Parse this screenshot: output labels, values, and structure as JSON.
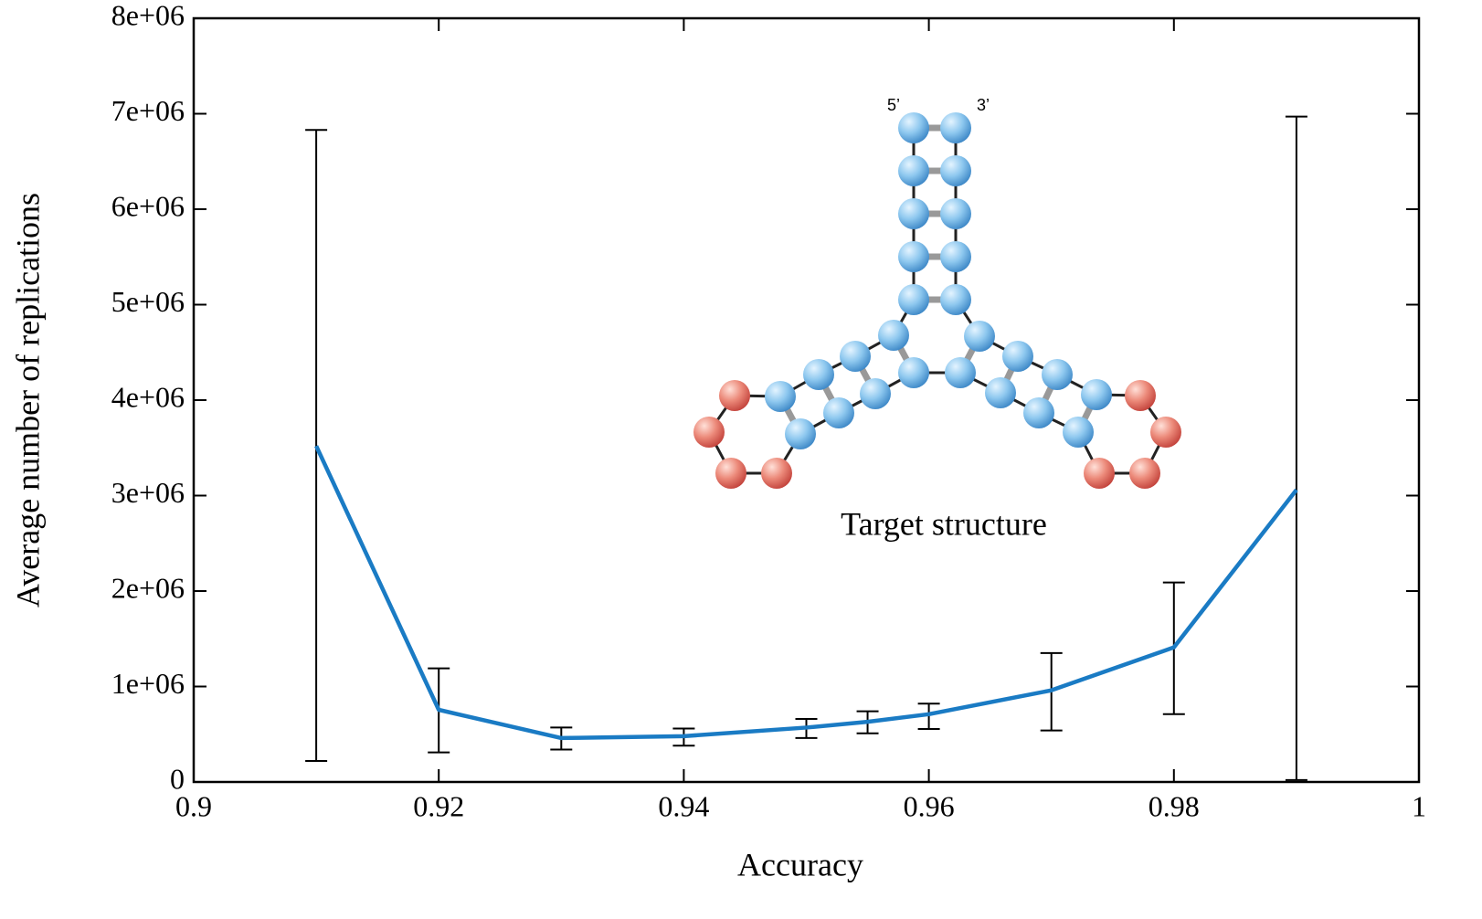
{
  "chart_data": {
    "type": "line",
    "x": [
      0.91,
      0.92,
      0.93,
      0.94,
      0.95,
      0.955,
      0.96,
      0.97,
      0.98,
      0.99
    ],
    "values": [
      3520000,
      756000,
      460000,
      480000,
      570000,
      630000,
      710000,
      960000,
      1410000,
      3060000
    ],
    "error_lower": [
      3300000,
      446000,
      120000,
      100000,
      110000,
      120000,
      155000,
      420000,
      700000,
      3040000
    ],
    "error_upper": [
      3310000,
      434000,
      110000,
      80000,
      90000,
      110000,
      110000,
      390000,
      680000,
      3910000
    ],
    "color": "#1a7bc4",
    "xlabel": "Accuracy",
    "ylabel": "Average number of replications",
    "xlim": [
      0.9,
      1
    ],
    "xticks": [
      0.9,
      0.92,
      0.94,
      0.96,
      0.98,
      1
    ],
    "ylim": [
      0,
      8000000
    ],
    "yticks": [
      0,
      {
        "value": 1000000,
        "label": "1e+06"
      },
      {
        "value": 2000000,
        "label": "2e+06"
      },
      {
        "value": 3000000,
        "label": "3e+06"
      },
      {
        "value": 4000000,
        "label": "4e+06"
      },
      {
        "value": 5000000,
        "label": "5e+06"
      },
      {
        "value": 6000000,
        "label": "6e+06"
      },
      {
        "value": 7000000,
        "label": "7e+06"
      },
      {
        "value": 8000000,
        "label": "8e+06"
      }
    ],
    "annotations": {
      "five_prime": "5’",
      "three_prime": "3’",
      "inset_caption": "Target structure"
    }
  }
}
